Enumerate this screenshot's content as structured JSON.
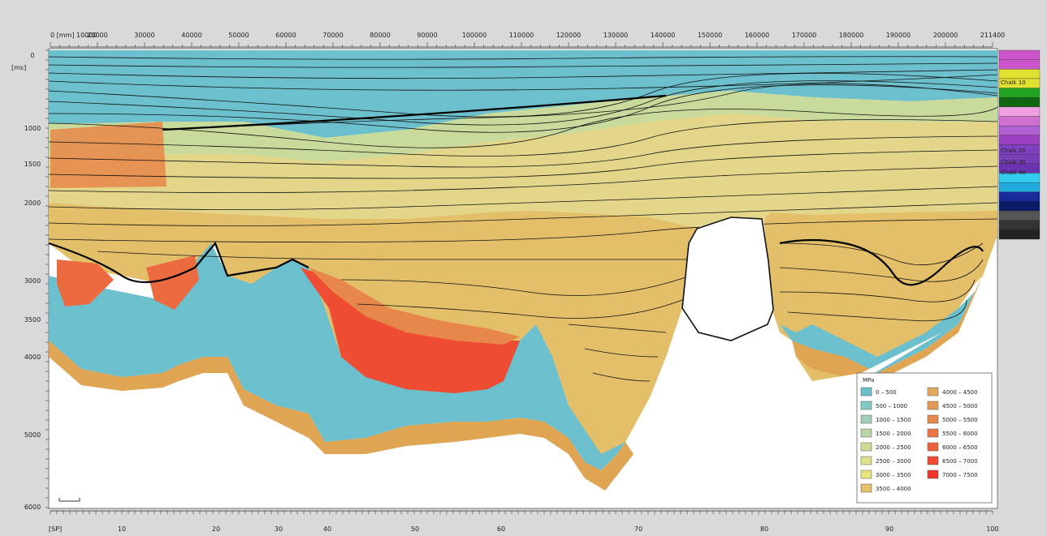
{
  "top_axis": {
    "labels": [
      "0 [mm] 10000",
      "20000",
      "30000",
      "40000",
      "50000",
      "60000",
      "70000",
      "80000",
      "90000",
      "100000",
      "110000",
      "120000",
      "130000",
      "140000",
      "150000",
      "160000",
      "170000",
      "180000",
      "190000",
      "200000",
      "211400"
    ]
  },
  "left_axis": {
    "unit": "[ms]",
    "labels": [
      "0",
      "1000",
      "1500",
      "2000",
      "3000",
      "3500",
      "4000",
      "5000",
      "6000"
    ]
  },
  "bottom_axis": {
    "labels": [
      "[SP]",
      "10",
      "20",
      "30",
      "40",
      "50",
      "60",
      "70",
      "80",
      "90",
      "100"
    ]
  },
  "column_labels": [
    "Chalk 10",
    "Chalk 20",
    "Chalk 30",
    "Chalk 40"
  ],
  "legend": {
    "title": "MPa",
    "items": [
      {
        "label": "0 – 500",
        "color": "#6cbfcc"
      },
      {
        "label": "500 – 1000",
        "color": "#85c7c4"
      },
      {
        "label": "1000 – 1500",
        "color": "#a3cfb8"
      },
      {
        "label": "1500 – 2000",
        "color": "#b9d6a8"
      },
      {
        "label": "2000 – 2500",
        "color": "#cddc98"
      },
      {
        "label": "2500 – 3000",
        "color": "#dfe28c"
      },
      {
        "label": "3000 – 3500",
        "color": "#e8e47e"
      },
      {
        "label": "3500 – 4000",
        "color": "#e4c06a"
      },
      {
        "label": "4000 – 4500",
        "color": "#e3a85c"
      },
      {
        "label": "4500 – 5000",
        "color": "#e69a55"
      },
      {
        "label": "5000 – 5500",
        "color": "#e8874c"
      },
      {
        "label": "5500 – 6000",
        "color": "#eb7444"
      },
      {
        "label": "6000 – 6500",
        "color": "#ee603b"
      },
      {
        "label": "6500 – 7000",
        "color": "#f04a32"
      },
      {
        "label": "7000 – 7500",
        "color": "#f23328"
      }
    ]
  },
  "colors": {
    "background": "#d9d9d9",
    "plot_bg": "#ffffff",
    "shallow": "#6cbfcc",
    "mid_yellow": "#e6e27e",
    "tan": "#e4bf6a",
    "orange": "#e07a40",
    "red": "#f04a32",
    "line": "#111111"
  },
  "strat_column": [
    "#cc55cc",
    "#cc55cc",
    "#e0e030",
    "#e0e030",
    "#23a123",
    "#116611",
    "#f0a0e0",
    "#d070d0",
    "#b060d0",
    "#9a40c0",
    "#8040c0",
    "#7a3fb8",
    "#6a33b0",
    "#33ccee",
    "#20aadd",
    "#1a2a99",
    "#0a1a66",
    "#555555",
    "#333333",
    "#222222"
  ]
}
